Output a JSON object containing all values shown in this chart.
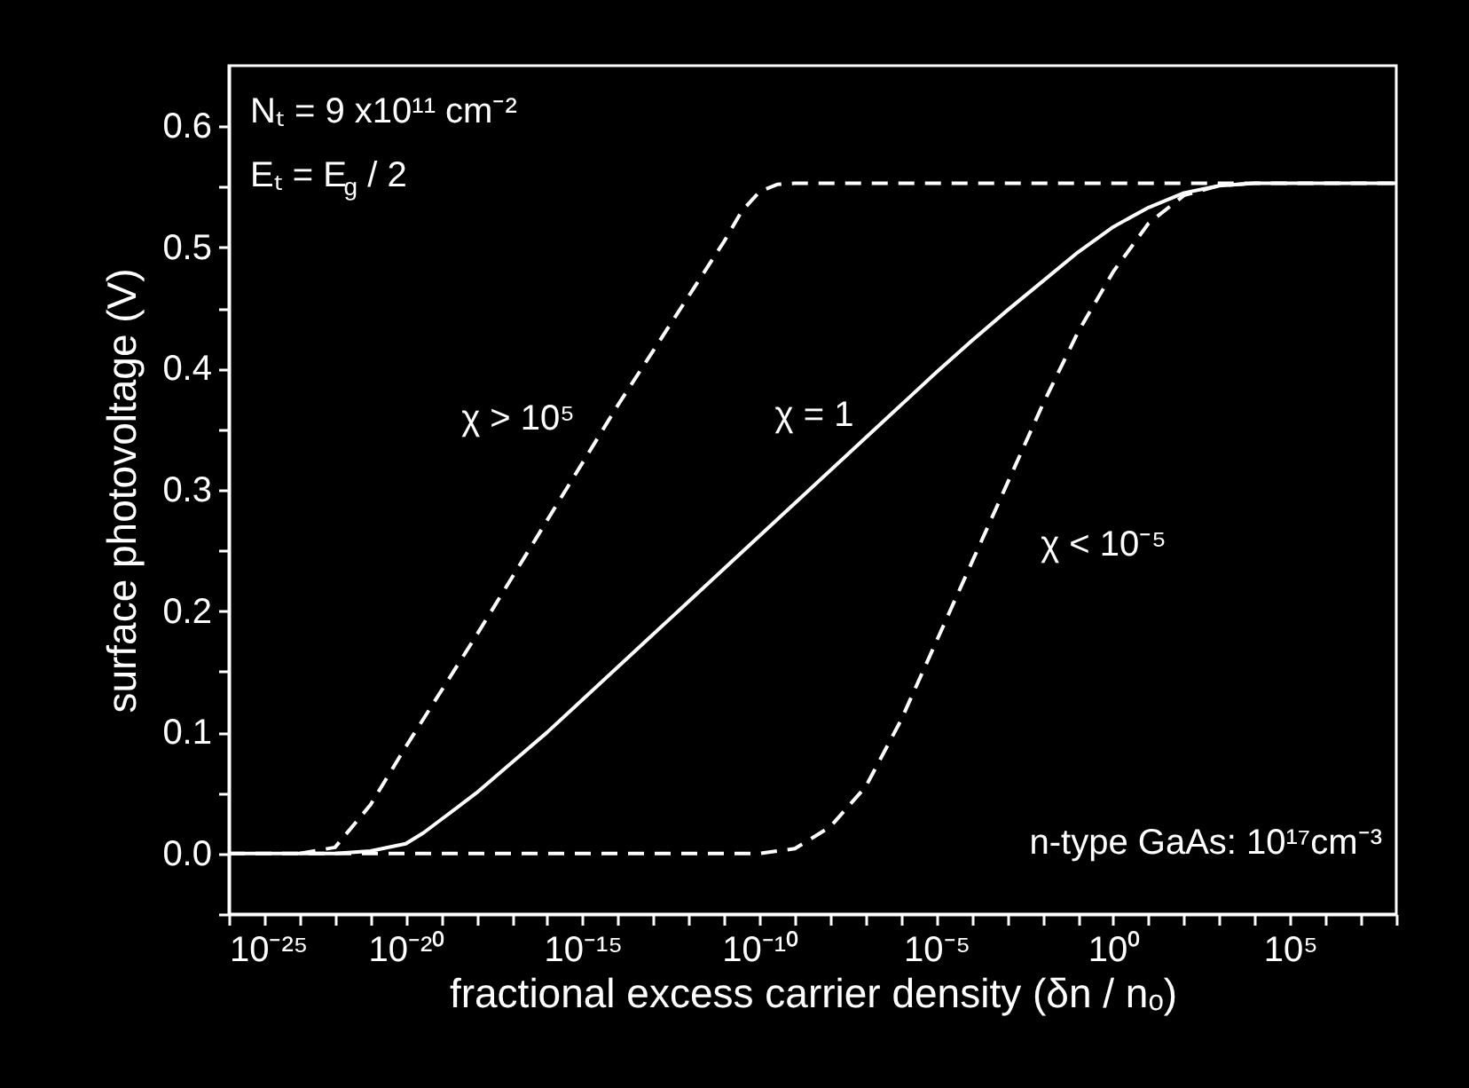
{
  "chart_data": {
    "type": "line",
    "xlabel": "fractional excess carrier density (δn / nₒ)",
    "ylabel": "surface photovoltage (V)",
    "log": "x",
    "grid": false,
    "marker": "none",
    "xlim": [
      1e-25,
      100000000.0
    ],
    "xticks": [
      {
        "value": 1e-25,
        "label": "10⁻²⁵"
      },
      {
        "value": 1e-24,
        "label": null
      },
      {
        "value": 1e-23,
        "label": null
      },
      {
        "value": 1e-22,
        "label": null
      },
      {
        "value": 1e-21,
        "label": null
      },
      {
        "value": 1e-20,
        "label": "10⁻²⁰"
      },
      {
        "value": 1e-19,
        "label": null
      },
      {
        "value": 1e-18,
        "label": null
      },
      {
        "value": 1e-17,
        "label": null
      },
      {
        "value": 1e-16,
        "label": null
      },
      {
        "value": 1e-15,
        "label": "10⁻¹⁵"
      },
      {
        "value": 1e-14,
        "label": null
      },
      {
        "value": 1e-13,
        "label": null
      },
      {
        "value": 1e-12,
        "label": null
      },
      {
        "value": 1e-11,
        "label": null
      },
      {
        "value": 1e-10,
        "label": "10⁻¹⁰"
      },
      {
        "value": 1e-09,
        "label": null
      },
      {
        "value": 1e-08,
        "label": null
      },
      {
        "value": 1e-07,
        "label": null
      },
      {
        "value": 1e-06,
        "label": null
      },
      {
        "value": 1e-05,
        "label": "10⁻⁵"
      },
      {
        "value": 0.0001,
        "label": null
      },
      {
        "value": 0.001,
        "label": null
      },
      {
        "value": 0.01,
        "label": null
      },
      {
        "value": 0.1,
        "label": null
      },
      {
        "value": 1,
        "label": "10⁰"
      },
      {
        "value": 10,
        "label": null
      },
      {
        "value": 100,
        "label": null
      },
      {
        "value": 1000,
        "label": null
      },
      {
        "value": 10000.0,
        "label": null
      },
      {
        "value": 100000.0,
        "label": "10⁵"
      },
      {
        "value": 1000000.0,
        "label": null
      },
      {
        "value": 10000000.0,
        "label": null
      },
      {
        "value": 100000000.0,
        "label": null
      }
    ],
    "ylim": [
      -0.05,
      0.65
    ],
    "yticks": [
      {
        "value": -0.05,
        "label": null
      },
      {
        "value": 0,
        "label": "0.0"
      },
      {
        "value": 0.05,
        "label": null
      },
      0.1,
      {
        "value": 0.15,
        "label": null
      },
      0.2,
      {
        "value": 0.25,
        "label": null
      },
      0.3,
      {
        "value": 0.35,
        "label": null
      },
      0.4,
      {
        "value": 0.45,
        "label": null
      },
      0.5,
      {
        "value": 0.55,
        "label": null
      },
      0.6
    ],
    "series": [
      {
        "color": "#ffffff",
        "line_style": "dashed",
        "x": [
          1e-23,
          1e-22,
          1e-21,
          1e-20,
          1e-18,
          1e-16,
          1e-14,
          1e-12,
          1e-11,
          3.16e-11,
          1e-10,
          3.16e-10,
          1e-09,
          100000000.0
        ],
        "values": [
          0,
          0.005,
          0.04,
          0.088,
          0.18,
          0.275,
          0.37,
          0.46,
          0.505,
          0.53,
          0.546,
          0.552,
          0.553,
          0.553
        ]
      },
      {
        "color": "#ffffff",
        "line_style": "solid",
        "x": [
          1e-25,
          1e-22,
          1e-21,
          1e-20,
          3.16e-20,
          1e-19,
          1e-18,
          1e-17,
          1e-16,
          1e-15,
          1e-13,
          1e-11,
          1e-09,
          1e-07,
          1e-05,
          0.0001,
          0.001,
          0.01,
          0.1,
          1,
          10,
          100,
          1000,
          10000.0,
          100000000.0
        ],
        "values": [
          0,
          0,
          0.002,
          0.008,
          0.017,
          0.028,
          0.05,
          0.075,
          0.1,
          0.127,
          0.181,
          0.235,
          0.289,
          0.343,
          0.397,
          0.423,
          0.448,
          0.472,
          0.496,
          0.517,
          0.533,
          0.545,
          0.551,
          0.553,
          0.553
        ]
      },
      {
        "color": "#ffffff",
        "line_style": "dashed",
        "x": [
          1e-25,
          1e-10,
          1e-09,
          1e-08,
          1e-07,
          1e-06,
          1e-05,
          0.0001,
          0.001,
          0.01,
          0.1,
          1,
          10,
          100,
          1000,
          10000.0
        ],
        "values": [
          0,
          0,
          0.004,
          0.022,
          0.055,
          0.11,
          0.175,
          0.24,
          0.305,
          0.37,
          0.43,
          0.48,
          0.52,
          0.543,
          0.551,
          0.553
        ]
      }
    ],
    "annotations": [
      "Nₜ = 9 x10¹¹ cm⁻²",
      "Eₜ = E$_{g}$ / 2",
      "n-type GaAs: 10¹⁷cm⁻³",
      "χ > 10⁵",
      "χ = 1",
      "χ < 10⁻⁵"
    ]
  }
}
